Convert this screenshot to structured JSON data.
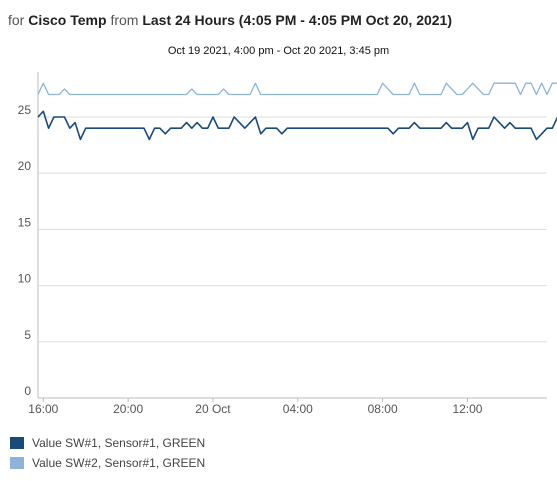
{
  "header": {
    "prefix": "for",
    "sensor": "Cisco Temp",
    "from": "from",
    "range": "Last 24 Hours (4:05 PM - 4:05 PM Oct 20, 2021)"
  },
  "subtitle": "Oct 19 2021, 4:00 pm - Oct 20 2021, 3:45 pm",
  "colors": {
    "series1": "#1a4a7a",
    "series2": "#8db4d8",
    "grid": "#dddddd",
    "axis": "#bbbbbb"
  },
  "chart_data": {
    "type": "line",
    "title": "Oct 19 2021, 4:00 pm - Oct 20 2021, 3:45 pm",
    "xlabel": "",
    "ylabel": "",
    "ylim": [
      0,
      29
    ],
    "yticks": [
      "0",
      "5",
      "10",
      "15",
      "20",
      "25"
    ],
    "ytick_values": [
      0,
      5,
      10,
      15,
      20,
      25
    ],
    "xlim": [
      "Oct 19 2021 15:45",
      "Oct 20 2021 15:45"
    ],
    "xtick_labels": [
      "16:00",
      "20:00",
      "20 Oct",
      "04:00",
      "08:00",
      "12:00"
    ],
    "xtick_values": [
      "Oct 19 2021 16:00",
      "Oct 19 2021 20:00",
      "Oct 20 2021 00:00",
      "Oct 20 2021 04:00",
      "Oct 20 2021 08:00",
      "Oct 20 2021 12:00"
    ],
    "grid": true,
    "legend_position": "bottom-left",
    "x_start": "Oct 19 2021 15:45",
    "x_interval_minutes": 15,
    "series": [
      {
        "name": "Value SW#1, Sensor#1, GREEN",
        "values": [
          25,
          25.5,
          24,
          25,
          25,
          25,
          24,
          24.5,
          23,
          24,
          24,
          24,
          24,
          24,
          24,
          24,
          24,
          24,
          24,
          24,
          24,
          23,
          24,
          24,
          23.5,
          24,
          24,
          24,
          24.5,
          24,
          24.5,
          24,
          24,
          25,
          24,
          24,
          24,
          25,
          24.5,
          24,
          24.5,
          25,
          23.5,
          24,
          24,
          24,
          23.5,
          24,
          24,
          24,
          24,
          24,
          24,
          24,
          24,
          24,
          24,
          24,
          24,
          24,
          24,
          24,
          24,
          24,
          24,
          24,
          24,
          23.5,
          24,
          24,
          24,
          24.5,
          24,
          24,
          24,
          24,
          24,
          24.5,
          24,
          24,
          24,
          24.5,
          23,
          24,
          24,
          24,
          25,
          24.5,
          24,
          24.5,
          24,
          24,
          24,
          24,
          23,
          23.5,
          24,
          24,
          25,
          24,
          24
        ]
      },
      {
        "name": "Value SW#2, Sensor#1, GREEN",
        "values": [
          27,
          28,
          27,
          27,
          27,
          27.5,
          27,
          27,
          27,
          27,
          27,
          27,
          27,
          27,
          27,
          27,
          27,
          27,
          27,
          27,
          27,
          27,
          27,
          27,
          27,
          27,
          27,
          27,
          27,
          27.5,
          27,
          27,
          27,
          27,
          27,
          27.5,
          27,
          27,
          27,
          27,
          27,
          28,
          27,
          27,
          27,
          27,
          27,
          27,
          27,
          27,
          27,
          27,
          27,
          27,
          27,
          27,
          27,
          27,
          27,
          27,
          27,
          27,
          27,
          27,
          27,
          28,
          27.5,
          27,
          27,
          27,
          27,
          28,
          27,
          27,
          27,
          27,
          27,
          28,
          27.5,
          27,
          27,
          27.5,
          28,
          27.5,
          27,
          27,
          28,
          28,
          28,
          28,
          28,
          27,
          28,
          28,
          27,
          28,
          27,
          28,
          28,
          28,
          27,
          28,
          28
        ]
      }
    ]
  }
}
